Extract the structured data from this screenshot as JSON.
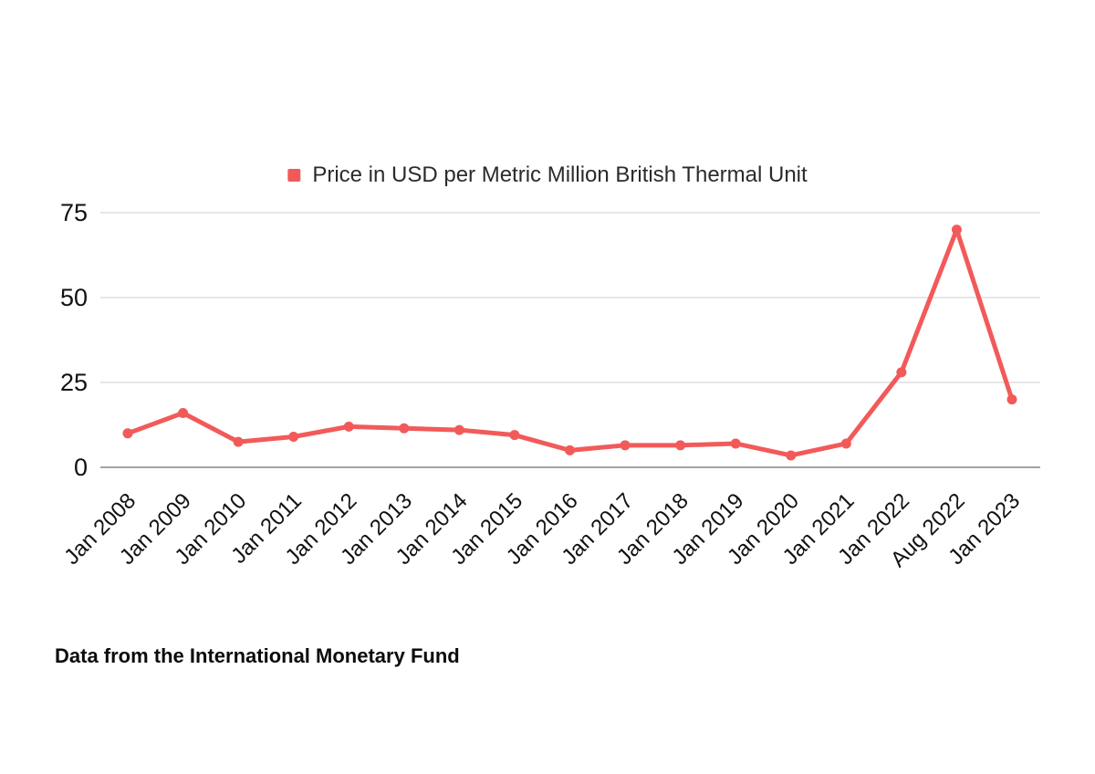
{
  "page": {
    "background_color": "#FFFFFF"
  },
  "legend": {
    "label": "Price in USD per Metric Million British Thermal Unit",
    "swatch_color": "#F25A5A"
  },
  "footer": {
    "source_text": "Data from the International Monetary Fund"
  },
  "chart_data": {
    "type": "line",
    "title": "Price in USD per Metric Million British Thermal Unit",
    "categories": [
      "Jan 2008",
      "Jan 2009",
      "Jan 2010",
      "Jan 2011",
      "Jan 2012",
      "Jan 2013",
      "Jan 2014",
      "Jan 2015",
      "Jan 2016",
      "Jan 2017",
      "Jan 2018",
      "Jan 2019",
      "Jan 2020",
      "Jan 2021",
      "Jan 2022",
      "Aug 2022",
      "Jan 2023"
    ],
    "series": [
      {
        "name": "Price in USD per Metric Million British Thermal Unit",
        "values": [
          10,
          16,
          7.5,
          9,
          12,
          11.5,
          11,
          9.5,
          5,
          6.5,
          6.5,
          7,
          3.5,
          7,
          28,
          70,
          20
        ],
        "color": "#F25A5A"
      }
    ],
    "xlabel": "",
    "ylabel": "",
    "ylim": [
      0,
      75
    ],
    "yticks": [
      0,
      25,
      50,
      75
    ],
    "grid": "horizontal",
    "legend_position": "top-center",
    "x_tick_rotation_deg": -45,
    "styles": {
      "gridline_color": "#D8D8D8",
      "baseline_color": "#A3A3A3",
      "tick_label_color": "#111111",
      "legend_text_color": "#2B2B2B"
    }
  }
}
